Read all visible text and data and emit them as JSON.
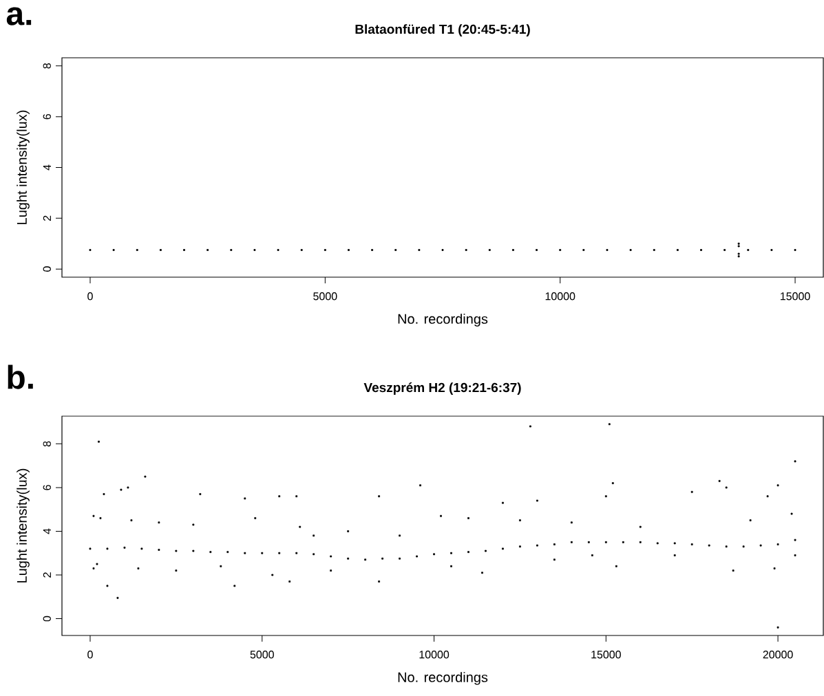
{
  "chart_data": [
    {
      "type": "scatter",
      "title": "Blataonfüred T1 (20:45-5:41)",
      "xlabel": "No. recordings",
      "ylabel": "Lught intensity(lux)",
      "annotations": [
        "a."
      ],
      "marker": "square",
      "color": "#000000",
      "xlim": [
        -600,
        15600
      ],
      "ylim": [
        -0.32,
        8.32
      ],
      "xticks": [
        0,
        5000,
        10000,
        15000
      ],
      "yticks": [
        0,
        2,
        4,
        6,
        8
      ],
      "x": [
        0,
        500,
        1000,
        1500,
        2000,
        2500,
        3000,
        3500,
        4000,
        4500,
        5000,
        5500,
        6000,
        6500,
        7000,
        7500,
        8000,
        8500,
        9000,
        9500,
        10000,
        10500,
        11000,
        11500,
        12000,
        12500,
        13000,
        13500,
        14000,
        14500,
        15000,
        13800,
        13800,
        13800,
        13800
      ],
      "values": [
        0.75,
        0.75,
        0.75,
        0.75,
        0.75,
        0.75,
        0.75,
        0.75,
        0.75,
        0.75,
        0.75,
        0.75,
        0.75,
        0.75,
        0.75,
        0.75,
        0.75,
        0.75,
        0.75,
        0.75,
        0.75,
        0.75,
        0.75,
        0.75,
        0.75,
        0.75,
        0.75,
        0.75,
        0.75,
        0.75,
        0.75,
        0.5,
        0.6,
        0.9,
        1.0
      ]
    },
    {
      "type": "scatter",
      "title": "Veszprém H2 (19:21-6:37)",
      "xlabel": "No. recordings",
      "ylabel": "Lught intensity(lux)",
      "annotations": [
        "b."
      ],
      "marker": "square",
      "color": "#000000",
      "xlim": [
        -820,
        21320
      ],
      "ylim": [
        -0.77,
        9.27
      ],
      "xticks": [
        0,
        5000,
        10000,
        15000,
        20000
      ],
      "yticks": [
        0,
        2,
        4,
        6,
        8
      ],
      "x": [
        0,
        500,
        1000,
        1500,
        2000,
        2500,
        3000,
        3500,
        4000,
        4500,
        5000,
        5500,
        6000,
        6500,
        7000,
        7500,
        8000,
        8500,
        9000,
        9500,
        10000,
        10500,
        11000,
        11500,
        12000,
        12500,
        13000,
        13500,
        14000,
        14500,
        15000,
        15500,
        16000,
        16500,
        17000,
        17500,
        18000,
        18500,
        19000,
        19500,
        20000,
        20500,
        250,
        400,
        300,
        200,
        500,
        800,
        900,
        1100,
        1600,
        1200,
        1400,
        2000,
        2500,
        3200,
        3000,
        3800,
        4200,
        4500,
        4800,
        5500,
        5300,
        6000,
        6100,
        5800,
        6500,
        7000,
        7500,
        8400,
        8400,
        9000,
        9600,
        10200,
        10500,
        11000,
        11400,
        12000,
        12500,
        12800,
        13000,
        13500,
        14000,
        14600,
        15000,
        15100,
        15200,
        15300,
        16000,
        17500,
        17000,
        18300,
        18500,
        18700,
        19200,
        19700,
        19900,
        20000,
        20000,
        20500,
        20400,
        20500,
        100,
        100
      ],
      "values": [
        3.2,
        3.2,
        3.25,
        3.2,
        3.15,
        3.1,
        3.1,
        3.05,
        3.05,
        3.0,
        3.0,
        3.0,
        3.0,
        2.95,
        2.85,
        2.75,
        2.7,
        2.75,
        2.75,
        2.85,
        2.95,
        3.0,
        3.05,
        3.1,
        3.2,
        3.3,
        3.35,
        3.4,
        3.5,
        3.5,
        3.5,
        3.5,
        3.5,
        3.45,
        3.45,
        3.4,
        3.35,
        3.3,
        3.3,
        3.35,
        3.4,
        3.6,
        8.1,
        5.7,
        4.6,
        2.5,
        1.5,
        0.95,
        5.9,
        6.0,
        6.5,
        4.5,
        2.3,
        4.4,
        2.2,
        5.7,
        4.3,
        2.4,
        1.5,
        5.5,
        4.6,
        5.6,
        2.0,
        5.6,
        4.2,
        1.7,
        3.8,
        2.2,
        4.0,
        5.6,
        1.7,
        3.8,
        6.1,
        4.7,
        2.4,
        4.6,
        2.1,
        5.3,
        4.5,
        8.8,
        5.4,
        2.7,
        4.4,
        2.9,
        5.6,
        8.9,
        6.2,
        2.4,
        4.2,
        5.8,
        2.9,
        6.3,
        6.0,
        2.2,
        4.5,
        5.6,
        2.3,
        6.1,
        -0.4,
        7.2,
        4.8,
        2.9,
        2.3,
        4.7
      ]
    }
  ]
}
